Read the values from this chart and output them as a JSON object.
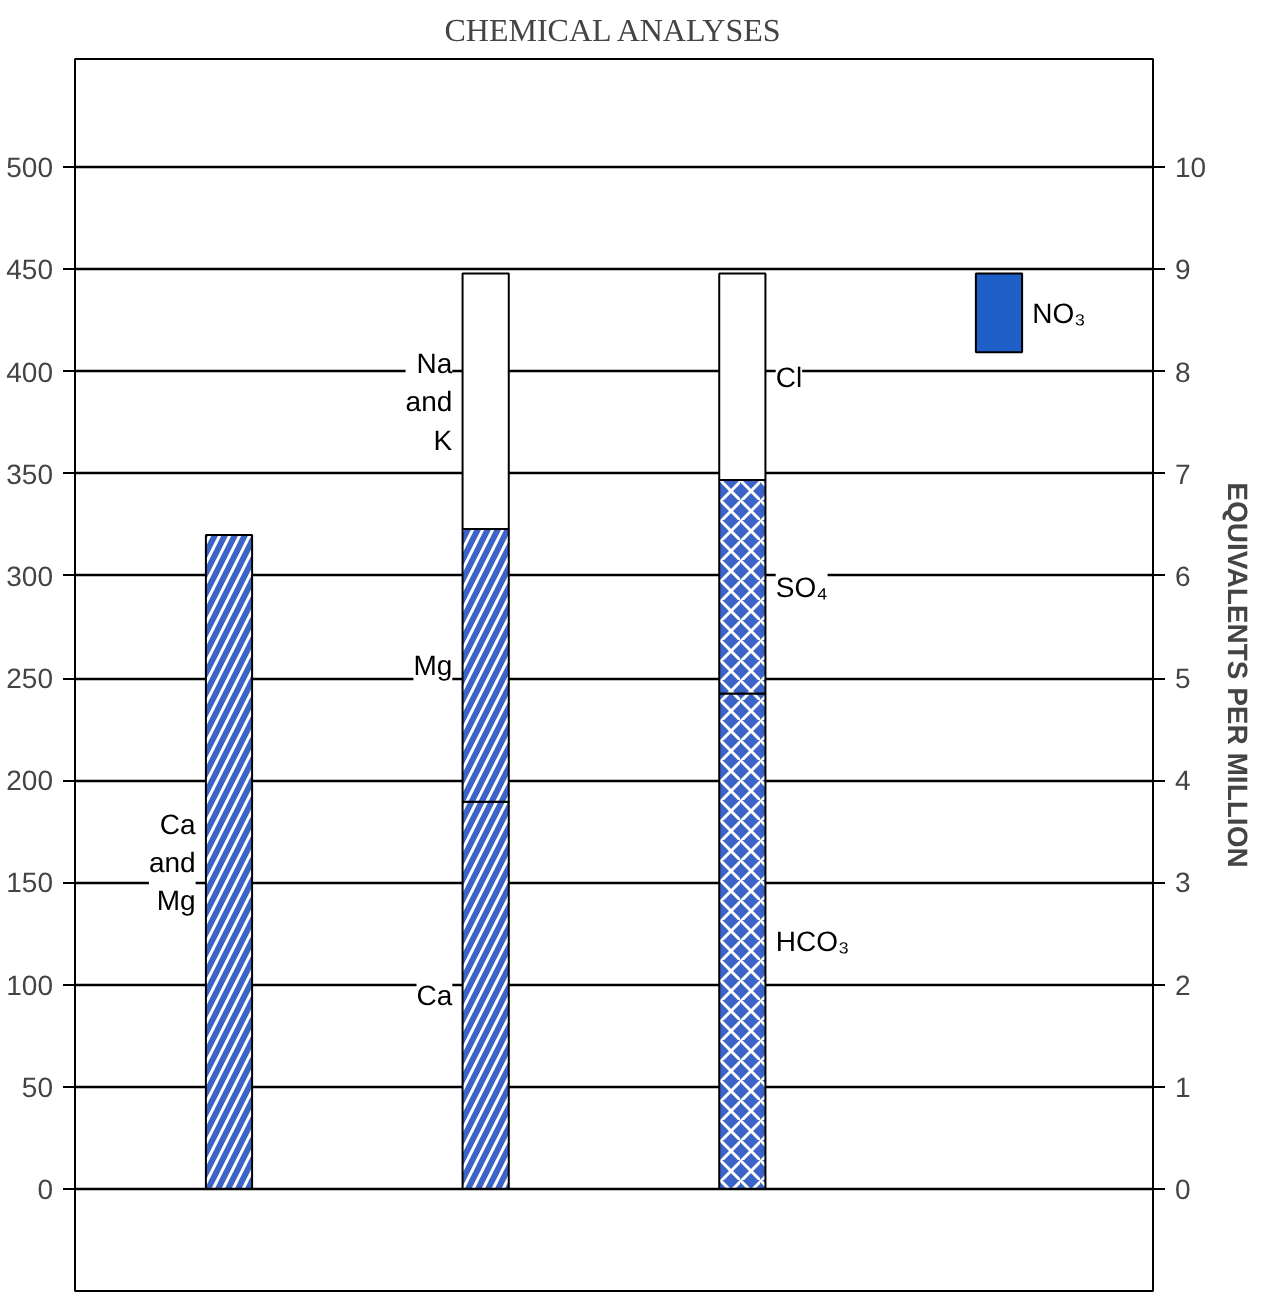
{
  "chart_data": {
    "type": "bar",
    "title": "CHEMICAL ANALYSES",
    "y2label": "EQUIVALENTS PER MILLION",
    "categories": [
      null,
      null,
      null,
      null
    ],
    "stacked": true,
    "series": [
      {
        "name": "Ca and Mg",
        "color": "#3b63c8",
        "axis": "y2",
        "values": [
          6.4,
          null,
          null,
          null
        ]
      },
      {
        "name": "Ca",
        "color": "#3b63c8",
        "axis": "y2",
        "values": [
          null,
          3.79,
          null,
          null
        ]
      },
      {
        "name": "Mg",
        "color": "#3b63c8",
        "axis": "y2",
        "values": [
          null,
          2.67,
          null,
          null
        ]
      },
      {
        "name": "Na and K",
        "color": "#ffffff",
        "axis": "y2",
        "values": [
          null,
          2.5,
          null,
          null
        ]
      },
      {
        "name": "HCO₃",
        "color": "#3b63c8",
        "axis": "y2",
        "values": [
          null,
          null,
          4.85,
          null
        ]
      },
      {
        "name": "SO₄",
        "color": "#3b63c8",
        "axis": "y2",
        "values": [
          null,
          null,
          2.09,
          null
        ]
      },
      {
        "name": "Cl",
        "color": "#ffffff",
        "axis": "y2",
        "values": [
          null,
          null,
          2.02,
          null
        ]
      },
      {
        "name": "NO₃",
        "color": "#1f5fc8",
        "axis": "y2",
        "base": [
          null,
          null,
          null,
          8.19
        ],
        "values": [
          null,
          null,
          null,
          0.77
        ]
      }
    ],
    "ylim": [
      -50,
      553
    ],
    "yticks": [
      0,
      50,
      100,
      150,
      200,
      250,
      300,
      350,
      400,
      450,
      500
    ],
    "y2lim": [
      -1,
      11.06
    ],
    "y2ticks": [
      0,
      1,
      2,
      3,
      4,
      5,
      6,
      7,
      8,
      9,
      10
    ],
    "grid": "y",
    "legend": false
  }
}
